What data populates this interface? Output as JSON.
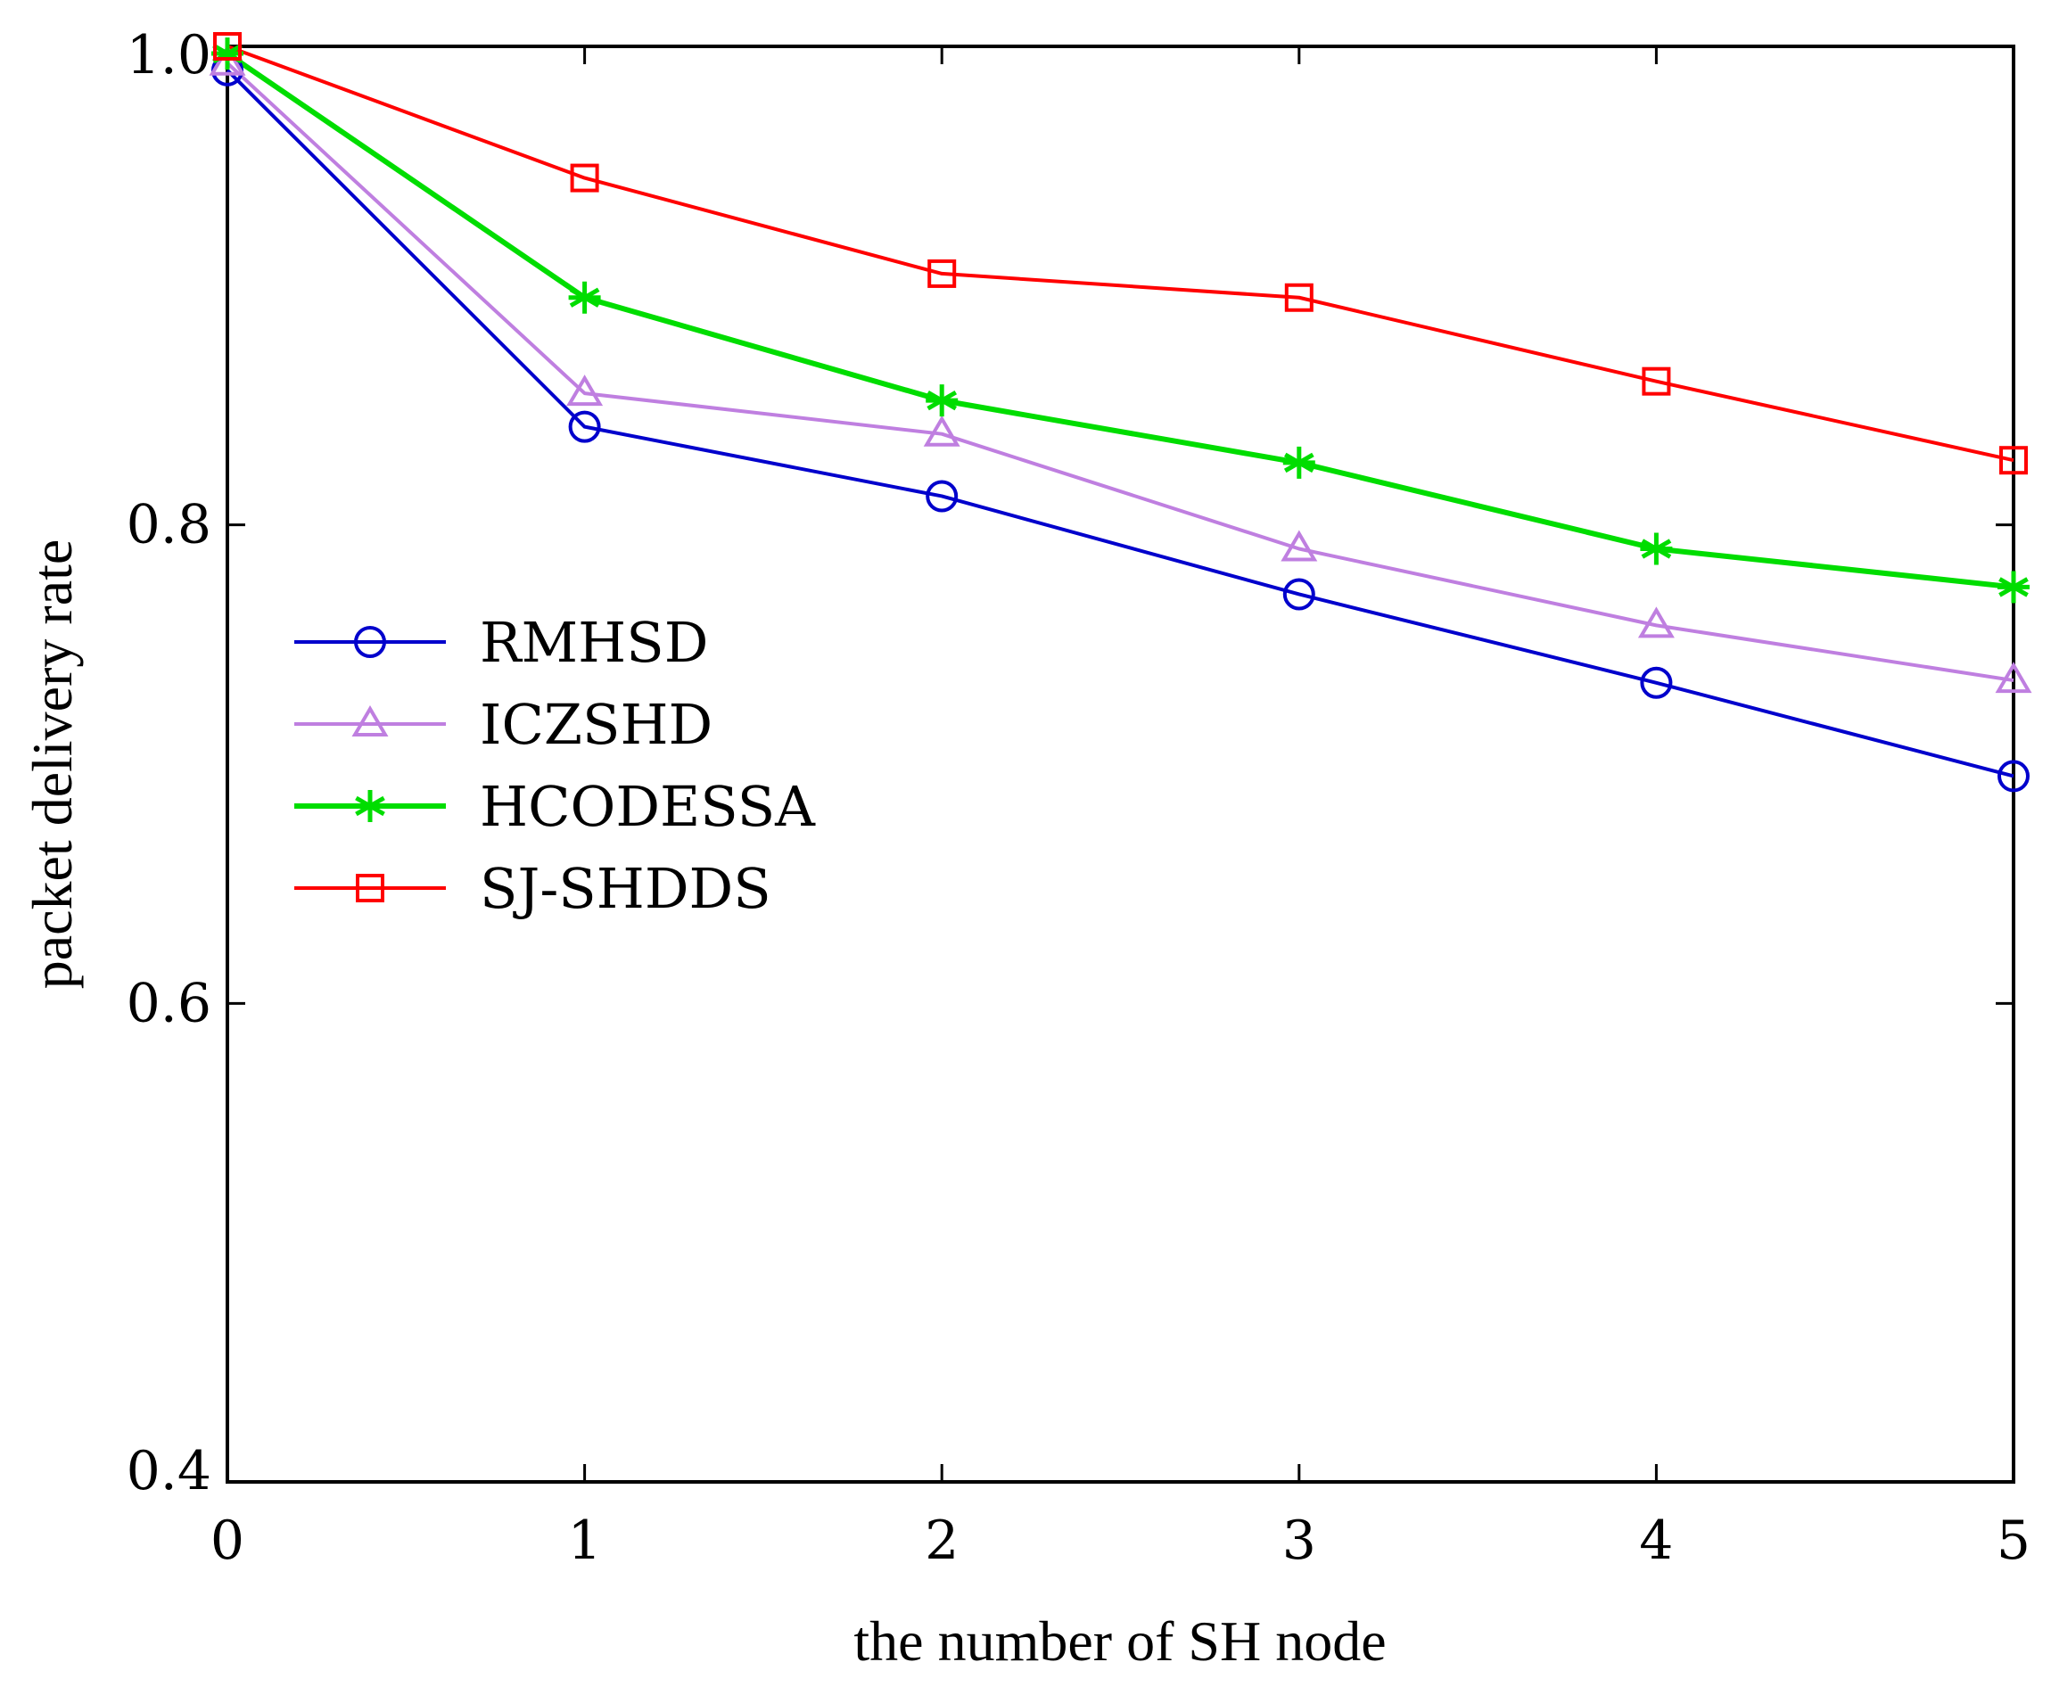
{
  "chart_data": {
    "type": "line",
    "title": "",
    "xlabel": "the number of SH node",
    "ylabel": "packet delivery rate",
    "x": [
      0,
      1,
      2,
      3,
      4,
      5
    ],
    "xlim": [
      0,
      5
    ],
    "ylim": [
      0.4,
      1.0
    ],
    "xticks": [
      "0",
      "1",
      "2",
      "3",
      "4",
      "5"
    ],
    "yticks": [
      {
        "value": 0.4,
        "label": "0.4"
      },
      {
        "value": 0.6,
        "label": "0.6"
      },
      {
        "value": 0.8,
        "label": "0.8"
      },
      {
        "value": 1.0,
        "label": "1.0"
      }
    ],
    "grid": false,
    "legend_position": "middle-left",
    "series": [
      {
        "name": "RMHSD",
        "color": "#0000cc",
        "marker": "circle",
        "values": [
          0.99,
          0.841,
          0.812,
          0.771,
          0.734,
          0.695
        ]
      },
      {
        "name": "ICZSHD",
        "color": "#bf7fe0",
        "marker": "triangle",
        "values": [
          0.993,
          0.855,
          0.838,
          0.79,
          0.758,
          0.735
        ]
      },
      {
        "name": "HCODESSA",
        "color": "#00dd00",
        "marker": "star",
        "values": [
          0.997,
          0.895,
          0.852,
          0.826,
          0.79,
          0.774
        ]
      },
      {
        "name": "SJ-SHDDS",
        "color": "#ff0000",
        "marker": "square",
        "values": [
          1.0,
          0.945,
          0.905,
          0.895,
          0.86,
          0.827
        ]
      }
    ]
  }
}
